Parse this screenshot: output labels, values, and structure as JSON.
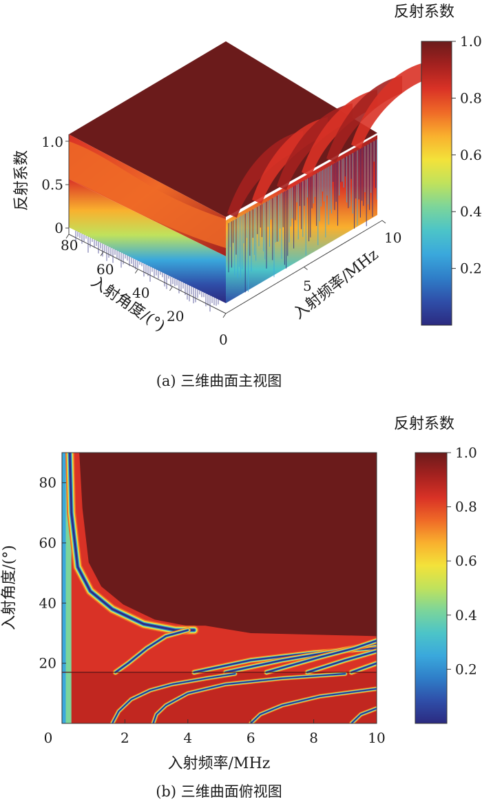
{
  "colors": {
    "max": "#6b1b1b",
    "min": "#2b2a80",
    "text": "#1a1a1a"
  },
  "colormap": [
    "#2b2a80",
    "#2f4ea8",
    "#2f7ec8",
    "#3aa8dc",
    "#4cc4c8",
    "#7cd59a",
    "#c0e25c",
    "#f3e23a",
    "#f9b02e",
    "#ef6a27",
    "#d93226",
    "#a4211f",
    "#6b1b1b"
  ],
  "colorbar": {
    "title": "反射系数",
    "ticks": [
      "1.0",
      "0.8",
      "0.6",
      "0.4",
      "0.2"
    ]
  },
  "chart_data": [
    {
      "type": "surface-3d",
      "caption": "(a) 三维曲面主视图",
      "xlabel": "入射频率/MHz",
      "ylabel": "入射角度/(°)",
      "zlabel": "反射系数",
      "x_ticks": [
        "5",
        "10"
      ],
      "y_ticks": [
        "80",
        "60",
        "40",
        "20",
        "0"
      ],
      "z_ticks": [
        "1.0",
        "0.5",
        "0"
      ],
      "xlim": [
        0,
        10
      ],
      "ylim": [
        0,
        90
      ],
      "zlim": [
        0,
        1.0
      ],
      "colorbar_range": [
        0,
        1.0
      ]
    },
    {
      "type": "heatmap",
      "caption": "(b) 三维曲面俯视图",
      "xlabel": "入射频率/MHz",
      "ylabel": "入射角度/(°)",
      "x_ticks": [
        "0",
        "2",
        "4",
        "6",
        "8",
        "10"
      ],
      "y_ticks": [
        "80",
        "60",
        "40",
        "20"
      ],
      "xlim": [
        0,
        10
      ],
      "ylim": [
        0,
        90
      ],
      "colorbar_range": [
        0,
        1.0
      ],
      "min_bands": [
        {
          "name": "main",
          "points": [
            [
              0.25,
              90
            ],
            [
              0.3,
              70
            ],
            [
              0.5,
              52
            ],
            [
              0.9,
              44
            ],
            [
              1.6,
              38
            ],
            [
              2.6,
              33
            ],
            [
              3.6,
              31
            ],
            [
              4.2,
              31
            ]
          ]
        },
        {
          "name": "lower",
          "points": [
            [
              1.7,
              17
            ],
            [
              2.1,
              20
            ],
            [
              2.7,
              25
            ],
            [
              3.3,
              29
            ],
            [
              4.0,
              31
            ]
          ]
        },
        {
          "name": "b3",
          "points": [
            [
              4.2,
              17
            ],
            [
              6.0,
              21
            ],
            [
              8.0,
              23.5
            ],
            [
              10,
              25
            ]
          ]
        },
        {
          "name": "b4",
          "points": [
            [
              5.2,
              17
            ],
            [
              7.0,
              21
            ],
            [
              8.7,
              24
            ],
            [
              10,
              26.5
            ]
          ]
        },
        {
          "name": "b5",
          "points": [
            [
              6.5,
              17
            ],
            [
              8.2,
              22
            ],
            [
              9.3,
              25
            ],
            [
              10,
              27.5
            ]
          ]
        },
        {
          "name": "b6",
          "points": [
            [
              7.8,
              17
            ],
            [
              9.0,
              21
            ],
            [
              10,
              24
            ]
          ]
        },
        {
          "name": "b7",
          "points": [
            [
              9.2,
              17
            ],
            [
              10,
              20
            ]
          ]
        }
      ],
      "discontinuity_angle": 17,
      "lower_curves": [
        {
          "name": "c1",
          "points": [
            [
              1.6,
              0
            ],
            [
              1.8,
              4
            ],
            [
              2.2,
              8
            ],
            [
              2.8,
              11
            ],
            [
              3.5,
              13
            ],
            [
              4.6,
              15
            ],
            [
              5.5,
              16.5
            ]
          ]
        },
        {
          "name": "c2",
          "points": [
            [
              2.9,
              0
            ],
            [
              3.0,
              3
            ],
            [
              3.3,
              6
            ],
            [
              4.0,
              10
            ],
            [
              5.2,
              13
            ],
            [
              7.0,
              15
            ],
            [
              9.0,
              16.5
            ]
          ]
        },
        {
          "name": "c3",
          "points": [
            [
              6.0,
              0
            ],
            [
              6.3,
              3
            ],
            [
              7.0,
              6
            ],
            [
              8.2,
              9
            ],
            [
              10,
              11.5
            ]
          ]
        },
        {
          "name": "c4",
          "points": [
            [
              9.2,
              0
            ],
            [
              9.5,
              3
            ],
            [
              10,
              5
            ]
          ]
        }
      ]
    }
  ]
}
